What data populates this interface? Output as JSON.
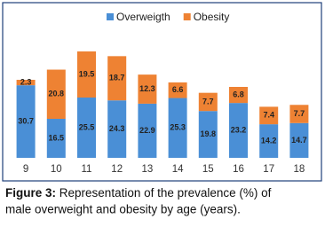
{
  "chart_data": {
    "type": "stacked-bar",
    "categories": [
      "9",
      "10",
      "11",
      "12",
      "13",
      "14",
      "15",
      "16",
      "17",
      "18"
    ],
    "series": [
      {
        "name": "Overweigth",
        "color": "#4a8fd6",
        "values": [
          30.7,
          16.5,
          25.5,
          24.3,
          22.9,
          25.3,
          19.8,
          23.2,
          14.2,
          14.7
        ]
      },
      {
        "name": "Obesity",
        "color": "#ee8233",
        "values": [
          2.3,
          20.8,
          19.5,
          18.7,
          12.3,
          6.6,
          7.7,
          6.8,
          7.4,
          7.7
        ]
      }
    ],
    "legend": "top"
  },
  "caption": {
    "label": "Figure 3:",
    "line1": "Representation of the prevalence (%) of",
    "line2": "male overweight and obesity by age (years)."
  }
}
